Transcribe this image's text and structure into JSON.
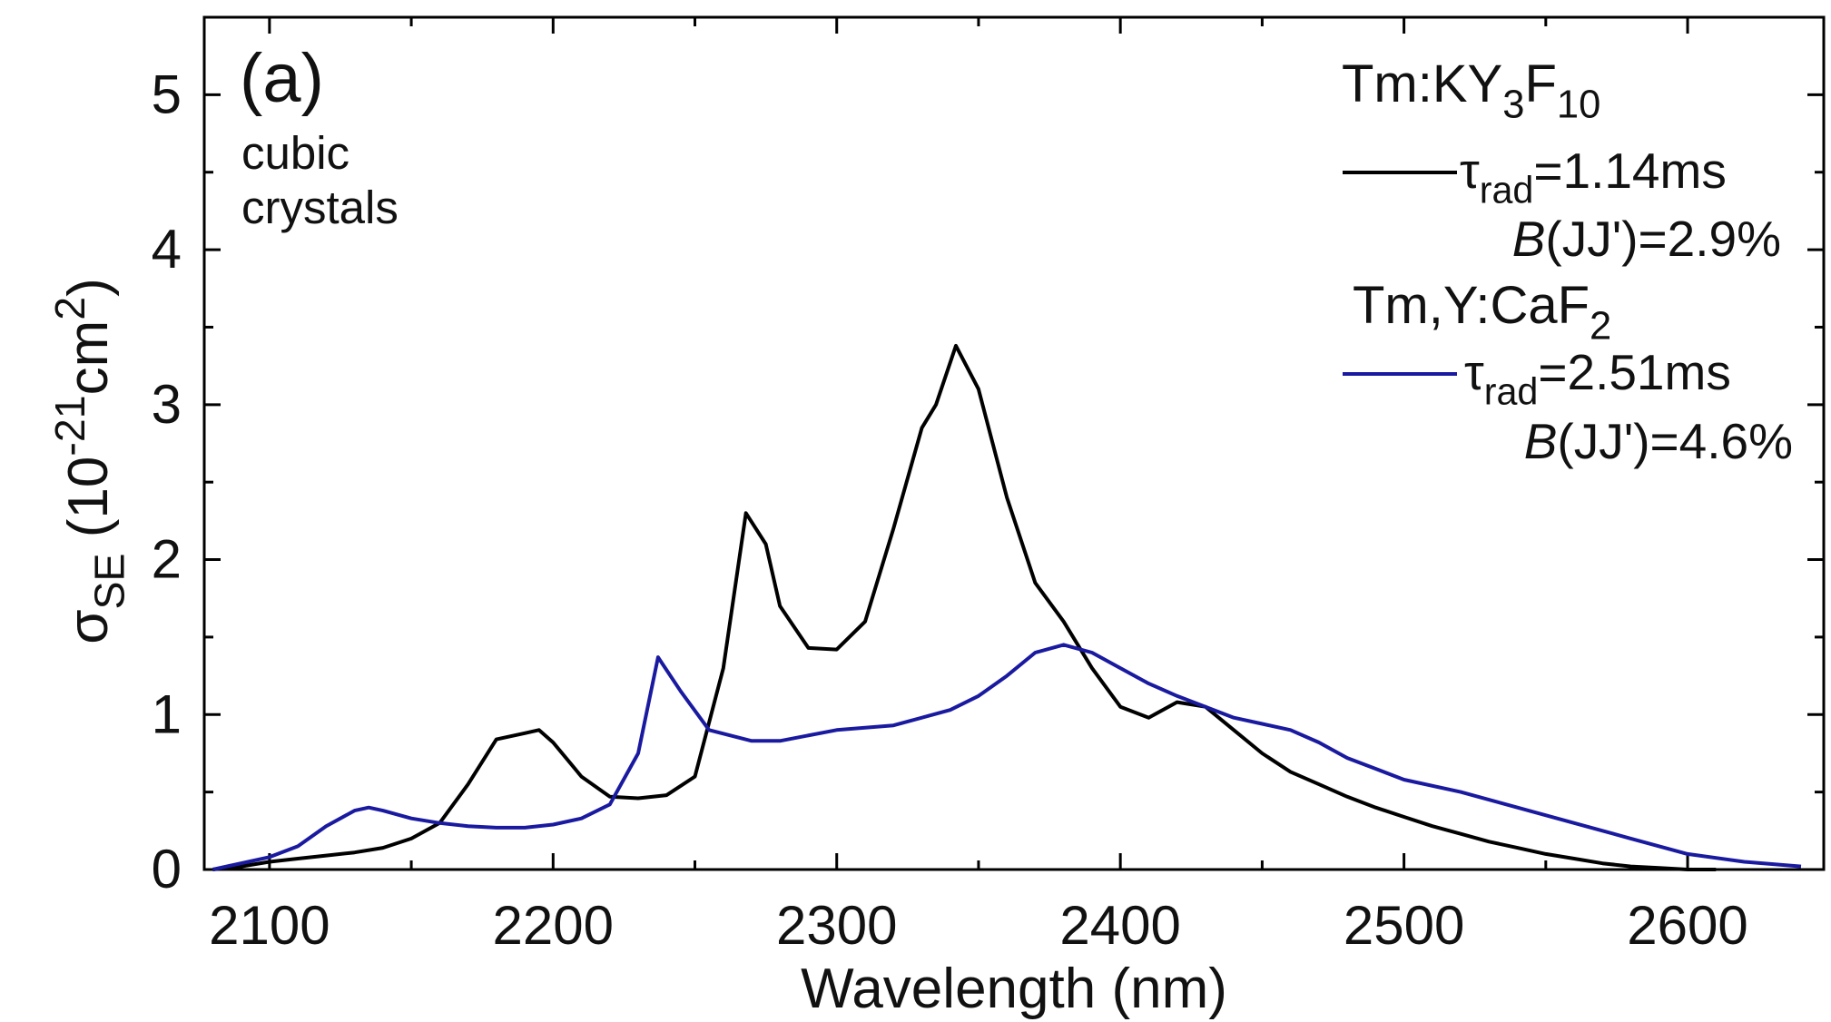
{
  "chart_data": {
    "type": "line",
    "panel_label": "(a)",
    "annotation": [
      "cubic",
      "crystals"
    ],
    "x_label": "Wavelength (nm)",
    "y_label": [
      {
        "text": "σ"
      },
      {
        "text": "SE",
        "sub": true
      },
      {
        "text": " (10"
      },
      {
        "text": "-21",
        "sup": true
      },
      {
        "text": "cm"
      },
      {
        "text": "2",
        "sup": true
      },
      {
        "text": ")"
      }
    ],
    "xlim": [
      2077,
      2648
    ],
    "ylim": [
      0,
      5.5
    ],
    "xticks": [
      2100,
      2200,
      2300,
      2400,
      2500,
      2600
    ],
    "xminorticks": [
      2150,
      2250,
      2350,
      2450,
      2550
    ],
    "yticks": [
      0,
      1,
      2,
      3,
      4,
      5
    ],
    "yminorticks": [
      0.5,
      1.5,
      2.5,
      3.5,
      4.5
    ],
    "series": [
      {
        "name": [
          {
            "text": "Tm:KY"
          },
          {
            "text": "3",
            "sub": true
          },
          {
            "text": "F"
          },
          {
            "text": "10",
            "sub": true
          }
        ],
        "tau": [
          {
            "text": "τ"
          },
          {
            "text": "rad",
            "sub": true
          },
          {
            "text": "=1.14ms"
          }
        ],
        "branching": [
          {
            "text": "B",
            "italic": true
          },
          {
            "text": "(JJ')=2.9%"
          }
        ],
        "color": "#000000",
        "x": [
          2080,
          2090,
          2100,
          2110,
          2120,
          2130,
          2140,
          2150,
          2160,
          2170,
          2180,
          2190,
          2195,
          2200,
          2210,
          2220,
          2230,
          2240,
          2250,
          2260,
          2268,
          2275,
          2280,
          2290,
          2300,
          2310,
          2320,
          2330,
          2335,
          2342,
          2350,
          2360,
          2370,
          2380,
          2390,
          2400,
          2410,
          2420,
          2430,
          2440,
          2450,
          2460,
          2470,
          2480,
          2490,
          2500,
          2510,
          2520,
          2530,
          2540,
          2550,
          2560,
          2570,
          2580,
          2590,
          2600,
          2610
        ],
        "values": [
          0.0,
          0.02,
          0.05,
          0.07,
          0.09,
          0.11,
          0.14,
          0.2,
          0.3,
          0.55,
          0.84,
          0.88,
          0.9,
          0.82,
          0.6,
          0.47,
          0.46,
          0.48,
          0.6,
          1.3,
          2.3,
          2.1,
          1.7,
          1.43,
          1.42,
          1.6,
          2.2,
          2.85,
          3.0,
          3.38,
          3.1,
          2.4,
          1.85,
          1.6,
          1.3,
          1.05,
          0.98,
          1.08,
          1.05,
          0.9,
          0.75,
          0.63,
          0.55,
          0.47,
          0.4,
          0.34,
          0.28,
          0.23,
          0.18,
          0.14,
          0.1,
          0.07,
          0.04,
          0.02,
          0.01,
          0.0,
          0.0
        ]
      },
      {
        "name": [
          {
            "text": "Tm,Y:CaF"
          },
          {
            "text": "2",
            "sub": true
          }
        ],
        "tau": [
          {
            "text": "τ"
          },
          {
            "text": "rad",
            "sub": true
          },
          {
            "text": "=2.51ms"
          }
        ],
        "branching": [
          {
            "text": "B",
            "italic": true
          },
          {
            "text": "(JJ')=4.6%"
          }
        ],
        "color": "#1a1aa0",
        "x": [
          2080,
          2100,
          2110,
          2120,
          2130,
          2135,
          2140,
          2150,
          2160,
          2170,
          2180,
          2190,
          2200,
          2210,
          2220,
          2230,
          2237,
          2245,
          2255,
          2270,
          2280,
          2300,
          2320,
          2340,
          2350,
          2360,
          2370,
          2380,
          2390,
          2400,
          2410,
          2420,
          2430,
          2440,
          2450,
          2460,
          2470,
          2480,
          2490,
          2500,
          2520,
          2540,
          2560,
          2580,
          2600,
          2620,
          2640
        ],
        "values": [
          0.0,
          0.08,
          0.15,
          0.28,
          0.38,
          0.4,
          0.38,
          0.33,
          0.3,
          0.28,
          0.27,
          0.27,
          0.29,
          0.33,
          0.42,
          0.75,
          1.37,
          1.15,
          0.9,
          0.83,
          0.83,
          0.9,
          0.93,
          1.03,
          1.12,
          1.25,
          1.4,
          1.45,
          1.4,
          1.3,
          1.2,
          1.12,
          1.05,
          0.98,
          0.94,
          0.9,
          0.82,
          0.72,
          0.65,
          0.58,
          0.5,
          0.4,
          0.3,
          0.2,
          0.1,
          0.05,
          0.02
        ]
      }
    ]
  }
}
